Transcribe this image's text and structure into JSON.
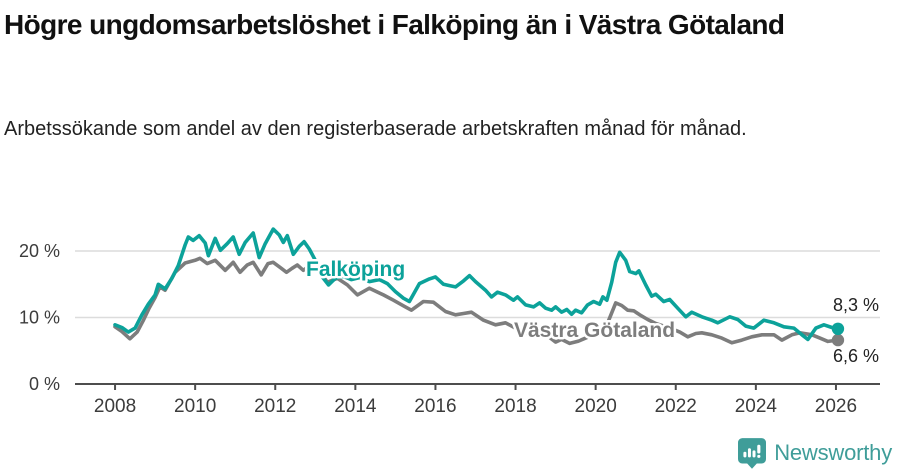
{
  "header": {
    "title": "Högre ungdomsarbetslöshet i Falköping än i Västra Götaland",
    "subtitle": "Arbetssökande som andel av den registerbaserade arbetskraften månad för månad."
  },
  "footer": {
    "brand": "Newsworthy"
  },
  "colors": {
    "accent_teal": "#0ca29a",
    "series_gray": "#7d7d7d",
    "brand_teal": "#3f9d99",
    "gridline": "#dcdcdc",
    "axis_line": "#4d4d4d",
    "axis_text": "#3c3c3c",
    "value_label_text": "#222222"
  },
  "chart_data": {
    "type": "line",
    "title": "Högre ungdomsarbetslöshet i Falköping än i Västra Götaland",
    "subtitle": "Arbetssökande som andel av den registerbaserade arbetskraften månad för månad.",
    "x_range": [
      2007,
      2027.1
    ],
    "y_range": [
      0,
      24
    ],
    "grid": "horizontal-only",
    "legend_position": "inline-labels",
    "x_ticks": [
      {
        "value": 2008,
        "label": "2008"
      },
      {
        "value": 2010,
        "label": "2010"
      },
      {
        "value": 2012,
        "label": "2012"
      },
      {
        "value": 2014,
        "label": "2014"
      },
      {
        "value": 2016,
        "label": "2016"
      },
      {
        "value": 2018,
        "label": "2018"
      },
      {
        "value": 2020,
        "label": "2020"
      },
      {
        "value": 2022,
        "label": "2022"
      },
      {
        "value": 2024,
        "label": "2024"
      },
      {
        "value": 2026,
        "label": "2026"
      }
    ],
    "y_ticks": [
      {
        "value": 0,
        "label": "0 %"
      },
      {
        "value": 10,
        "label": "10 %"
      },
      {
        "value": 20,
        "label": "20 %"
      }
    ],
    "series": [
      {
        "name": "Västra Götaland",
        "color": "#7d7d7d",
        "end_label": "6,6 %",
        "end_value": 6.6,
        "points": [
          [
            2008.0,
            8.6
          ],
          [
            2008.17,
            7.9
          ],
          [
            2008.37,
            6.8
          ],
          [
            2008.55,
            7.8
          ],
          [
            2008.7,
            9.5
          ],
          [
            2008.85,
            11.4
          ],
          [
            2009.0,
            13.0
          ],
          [
            2009.12,
            14.6
          ],
          [
            2009.25,
            14.1
          ],
          [
            2009.5,
            16.8
          ],
          [
            2009.75,
            18.2
          ],
          [
            2010.0,
            18.6
          ],
          [
            2010.12,
            18.9
          ],
          [
            2010.3,
            18.1
          ],
          [
            2010.5,
            18.6
          ],
          [
            2010.75,
            17.1
          ],
          [
            2010.95,
            18.3
          ],
          [
            2011.12,
            16.8
          ],
          [
            2011.3,
            17.9
          ],
          [
            2011.45,
            18.3
          ],
          [
            2011.65,
            16.4
          ],
          [
            2011.82,
            18.1
          ],
          [
            2011.95,
            18.3
          ],
          [
            2012.15,
            17.4
          ],
          [
            2012.28,
            16.8
          ],
          [
            2012.42,
            17.4
          ],
          [
            2012.55,
            17.9
          ],
          [
            2012.7,
            17.1
          ],
          [
            2012.9,
            18.0
          ],
          [
            2013.1,
            17.1
          ],
          [
            2013.3,
            15.3
          ],
          [
            2013.55,
            15.9
          ],
          [
            2013.8,
            14.9
          ],
          [
            2014.05,
            13.4
          ],
          [
            2014.35,
            14.4
          ],
          [
            2014.7,
            13.4
          ],
          [
            2014.95,
            12.6
          ],
          [
            2015.25,
            11.6
          ],
          [
            2015.4,
            11.1
          ],
          [
            2015.7,
            12.4
          ],
          [
            2015.95,
            12.3
          ],
          [
            2016.25,
            10.9
          ],
          [
            2016.5,
            10.4
          ],
          [
            2016.7,
            10.6
          ],
          [
            2016.9,
            10.8
          ],
          [
            2017.2,
            9.6
          ],
          [
            2017.5,
            8.9
          ],
          [
            2017.75,
            9.2
          ],
          [
            2018.0,
            8.4
          ],
          [
            2018.2,
            7.8
          ],
          [
            2018.4,
            7.3
          ],
          [
            2018.6,
            7.5
          ],
          [
            2018.85,
            7.0
          ],
          [
            2019.0,
            6.3
          ],
          [
            2019.15,
            6.7
          ],
          [
            2019.35,
            6.1
          ],
          [
            2019.55,
            6.4
          ],
          [
            2019.75,
            6.9
          ],
          [
            2019.95,
            7.4
          ],
          [
            2020.15,
            8.0
          ],
          [
            2020.3,
            9.2
          ],
          [
            2020.5,
            12.2
          ],
          [
            2020.65,
            11.8
          ],
          [
            2020.8,
            11.1
          ],
          [
            2020.95,
            11.0
          ],
          [
            2021.1,
            10.4
          ],
          [
            2021.3,
            9.7
          ],
          [
            2021.5,
            9.1
          ],
          [
            2021.7,
            8.7
          ],
          [
            2021.9,
            8.3
          ],
          [
            2022.1,
            7.8
          ],
          [
            2022.3,
            7.1
          ],
          [
            2022.5,
            7.6
          ],
          [
            2022.65,
            7.7
          ],
          [
            2022.9,
            7.4
          ],
          [
            2023.15,
            6.9
          ],
          [
            2023.4,
            6.2
          ],
          [
            2023.65,
            6.6
          ],
          [
            2023.9,
            7.1
          ],
          [
            2024.15,
            7.4
          ],
          [
            2024.45,
            7.4
          ],
          [
            2024.65,
            6.6
          ],
          [
            2024.9,
            7.4
          ],
          [
            2025.1,
            7.7
          ],
          [
            2025.4,
            7.4
          ],
          [
            2025.6,
            6.9
          ],
          [
            2025.8,
            6.4
          ],
          [
            2026.05,
            6.6
          ]
        ]
      },
      {
        "name": "Falköping",
        "color": "#0ca29a",
        "end_label": "8,3 %",
        "end_value": 8.3,
        "points": [
          [
            2008.0,
            8.9
          ],
          [
            2008.17,
            8.5
          ],
          [
            2008.33,
            7.8
          ],
          [
            2008.5,
            8.4
          ],
          [
            2008.67,
            10.4
          ],
          [
            2008.83,
            12.0
          ],
          [
            2009.0,
            13.4
          ],
          [
            2009.08,
            15.0
          ],
          [
            2009.25,
            14.3
          ],
          [
            2009.42,
            15.9
          ],
          [
            2009.58,
            17.8
          ],
          [
            2009.75,
            20.9
          ],
          [
            2009.83,
            22.1
          ],
          [
            2009.95,
            21.6
          ],
          [
            2010.1,
            22.3
          ],
          [
            2010.25,
            21.2
          ],
          [
            2010.33,
            19.3
          ],
          [
            2010.5,
            21.9
          ],
          [
            2010.63,
            20.1
          ],
          [
            2010.8,
            21.1
          ],
          [
            2010.95,
            22.1
          ],
          [
            2011.1,
            19.5
          ],
          [
            2011.25,
            21.3
          ],
          [
            2011.45,
            22.7
          ],
          [
            2011.6,
            19.0
          ],
          [
            2011.75,
            21.1
          ],
          [
            2011.95,
            23.3
          ],
          [
            2012.1,
            22.4
          ],
          [
            2012.2,
            21.3
          ],
          [
            2012.3,
            22.3
          ],
          [
            2012.45,
            19.5
          ],
          [
            2012.6,
            20.7
          ],
          [
            2012.72,
            21.4
          ],
          [
            2012.85,
            20.3
          ],
          [
            2013.0,
            18.6
          ],
          [
            2013.15,
            16.3
          ],
          [
            2013.33,
            14.9
          ],
          [
            2013.5,
            15.9
          ],
          [
            2013.7,
            16.2
          ],
          [
            2013.9,
            15.7
          ],
          [
            2014.1,
            16.0
          ],
          [
            2014.35,
            15.4
          ],
          [
            2014.6,
            15.7
          ],
          [
            2014.8,
            15.1
          ],
          [
            2015.0,
            13.9
          ],
          [
            2015.2,
            12.9
          ],
          [
            2015.35,
            12.4
          ],
          [
            2015.6,
            15.1
          ],
          [
            2015.85,
            15.8
          ],
          [
            2016.0,
            16.1
          ],
          [
            2016.2,
            15.0
          ],
          [
            2016.35,
            14.8
          ],
          [
            2016.5,
            14.6
          ],
          [
            2016.7,
            15.5
          ],
          [
            2016.85,
            16.3
          ],
          [
            2017.0,
            15.4
          ],
          [
            2017.25,
            14.1
          ],
          [
            2017.4,
            13.1
          ],
          [
            2017.55,
            13.8
          ],
          [
            2017.75,
            13.4
          ],
          [
            2017.95,
            12.6
          ],
          [
            2018.05,
            13.1
          ],
          [
            2018.25,
            11.9
          ],
          [
            2018.45,
            11.6
          ],
          [
            2018.6,
            12.2
          ],
          [
            2018.75,
            11.4
          ],
          [
            2018.9,
            11.1
          ],
          [
            2019.0,
            11.6
          ],
          [
            2019.15,
            10.8
          ],
          [
            2019.28,
            11.2
          ],
          [
            2019.4,
            10.5
          ],
          [
            2019.5,
            11.1
          ],
          [
            2019.65,
            10.7
          ],
          [
            2019.8,
            11.9
          ],
          [
            2019.95,
            12.4
          ],
          [
            2020.1,
            12.0
          ],
          [
            2020.18,
            13.1
          ],
          [
            2020.28,
            12.6
          ],
          [
            2020.4,
            15.3
          ],
          [
            2020.5,
            18.3
          ],
          [
            2020.6,
            19.8
          ],
          [
            2020.75,
            18.6
          ],
          [
            2020.85,
            16.9
          ],
          [
            2021.0,
            16.6
          ],
          [
            2021.08,
            17.0
          ],
          [
            2021.25,
            14.9
          ],
          [
            2021.4,
            13.2
          ],
          [
            2021.5,
            13.5
          ],
          [
            2021.7,
            12.4
          ],
          [
            2021.85,
            12.7
          ],
          [
            2022.05,
            11.4
          ],
          [
            2022.25,
            10.1
          ],
          [
            2022.4,
            10.8
          ],
          [
            2022.65,
            10.1
          ],
          [
            2022.9,
            9.6
          ],
          [
            2023.05,
            9.2
          ],
          [
            2023.35,
            10.1
          ],
          [
            2023.55,
            9.7
          ],
          [
            2023.75,
            8.7
          ],
          [
            2023.95,
            8.4
          ],
          [
            2024.2,
            9.6
          ],
          [
            2024.45,
            9.2
          ],
          [
            2024.7,
            8.6
          ],
          [
            2024.95,
            8.4
          ],
          [
            2025.15,
            7.4
          ],
          [
            2025.3,
            6.7
          ],
          [
            2025.5,
            8.4
          ],
          [
            2025.7,
            8.9
          ],
          [
            2025.9,
            8.5
          ],
          [
            2026.05,
            8.3
          ]
        ]
      }
    ]
  }
}
